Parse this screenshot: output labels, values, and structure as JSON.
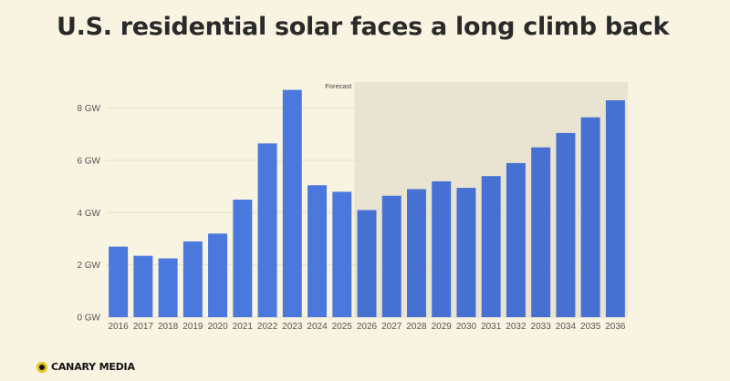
{
  "chart_data": {
    "type": "bar",
    "title": "U.S. residential solar faces a long climb back",
    "categories": [
      "2016",
      "2017",
      "2018",
      "2019",
      "2020",
      "2021",
      "2022",
      "2023",
      "2024",
      "2025",
      "2026",
      "2027",
      "2028",
      "2029",
      "2030",
      "2031",
      "2032",
      "2033",
      "2034",
      "2035",
      "2036"
    ],
    "values": [
      2.7,
      2.35,
      2.25,
      2.9,
      3.2,
      4.5,
      6.65,
      8.7,
      5.05,
      4.8,
      4.1,
      4.65,
      4.9,
      5.2,
      4.95,
      5.4,
      5.9,
      6.5,
      7.05,
      7.65,
      8.3
    ],
    "ylim": [
      0,
      9
    ],
    "yticks": [
      0,
      2,
      4,
      6,
      8
    ],
    "ytick_labels": [
      "0 GW",
      "2 GW",
      "4 GW",
      "6 GW",
      "8 GW"
    ],
    "xlabel": "",
    "ylabel": "",
    "grid": true,
    "forecast": {
      "label": "Forecast",
      "start": "2026"
    },
    "colors": {
      "actual": "#4a78dd",
      "forecast": "#4671d2",
      "forecast_band": "#e9e3d1",
      "grid": "#eadfc2",
      "background": "#f9f3e1"
    }
  },
  "brand": {
    "name": "CANARY MEDIA"
  }
}
